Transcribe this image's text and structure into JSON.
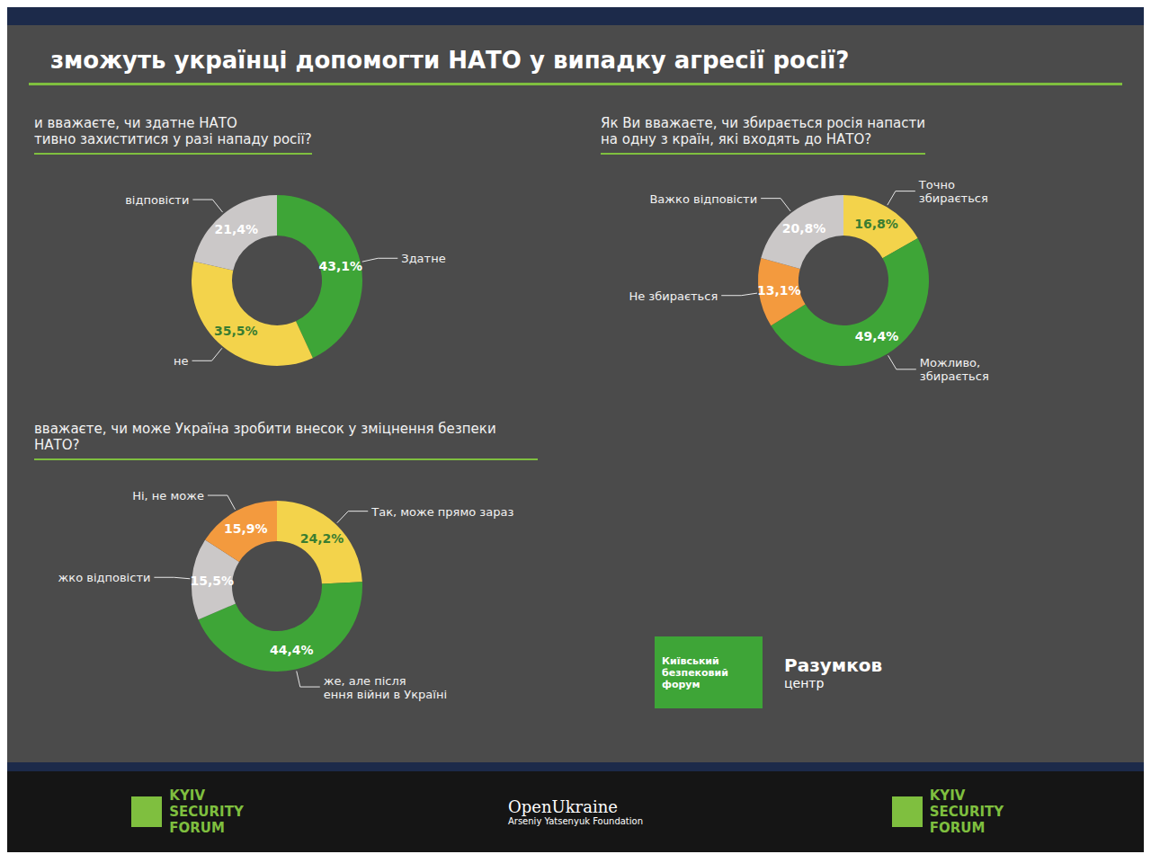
{
  "slide": {
    "title": "зможуть українці допомогти НАТО у випадку агресії росії?",
    "logos": [
      "Київський безпековий форум",
      "Разумков",
      "центр"
    ],
    "footer": [
      "KYIV SECURITY FORUM",
      "OpenUkraine",
      "Arseniy Yatsenyuk Foundation",
      "KYIV SECURITY FORUM"
    ]
  },
  "chart_data": [
    {
      "type": "pie",
      "title": "и вважаєте, чи здатне НАТО\nтивно захиститися у разі нападу росії?",
      "categories": [
        "Здатне",
        "не",
        "відповісти"
      ],
      "values": [
        43.1,
        35.5,
        21.4
      ],
      "value_labels": [
        "43,1%",
        "35,5%",
        "21,4%"
      ],
      "colors": [
        "#3ea537",
        "#f3d34b",
        "#cbc8c8"
      ],
      "data_labels": true
    },
    {
      "type": "pie",
      "title": "Як Ви вважаєте, чи збирається росія напасти\nна одну з країн, які входять до НАТО?",
      "categories": [
        "Точно\nзбирається",
        "Можливо,\nзбирається",
        "Не збирається",
        "Важко відповісти"
      ],
      "values": [
        16.8,
        49.4,
        13.1,
        20.8
      ],
      "value_labels": [
        "16,8%",
        "49,4%",
        "13,1%",
        "20,8%"
      ],
      "colors": [
        "#f3d34b",
        "#3ea537",
        "#f39a3e",
        "#cbc8c8"
      ],
      "data_labels": true
    },
    {
      "type": "pie",
      "title": "вважаєте, чи може Україна зробити внесок у зміцнення безпеки НАТО?",
      "categories": [
        "Так, може прямо зараз",
        "же, але після\nення війни в Україні",
        "жко відповісти",
        "Ні, не може"
      ],
      "values": [
        24.2,
        44.4,
        15.5,
        15.9
      ],
      "value_labels": [
        "24,2%",
        "44,4%",
        "15,5%",
        "15,9%"
      ],
      "colors": [
        "#f3d34b",
        "#3ea537",
        "#cbc8c8",
        "#f39a3e"
      ],
      "data_labels": true
    }
  ]
}
